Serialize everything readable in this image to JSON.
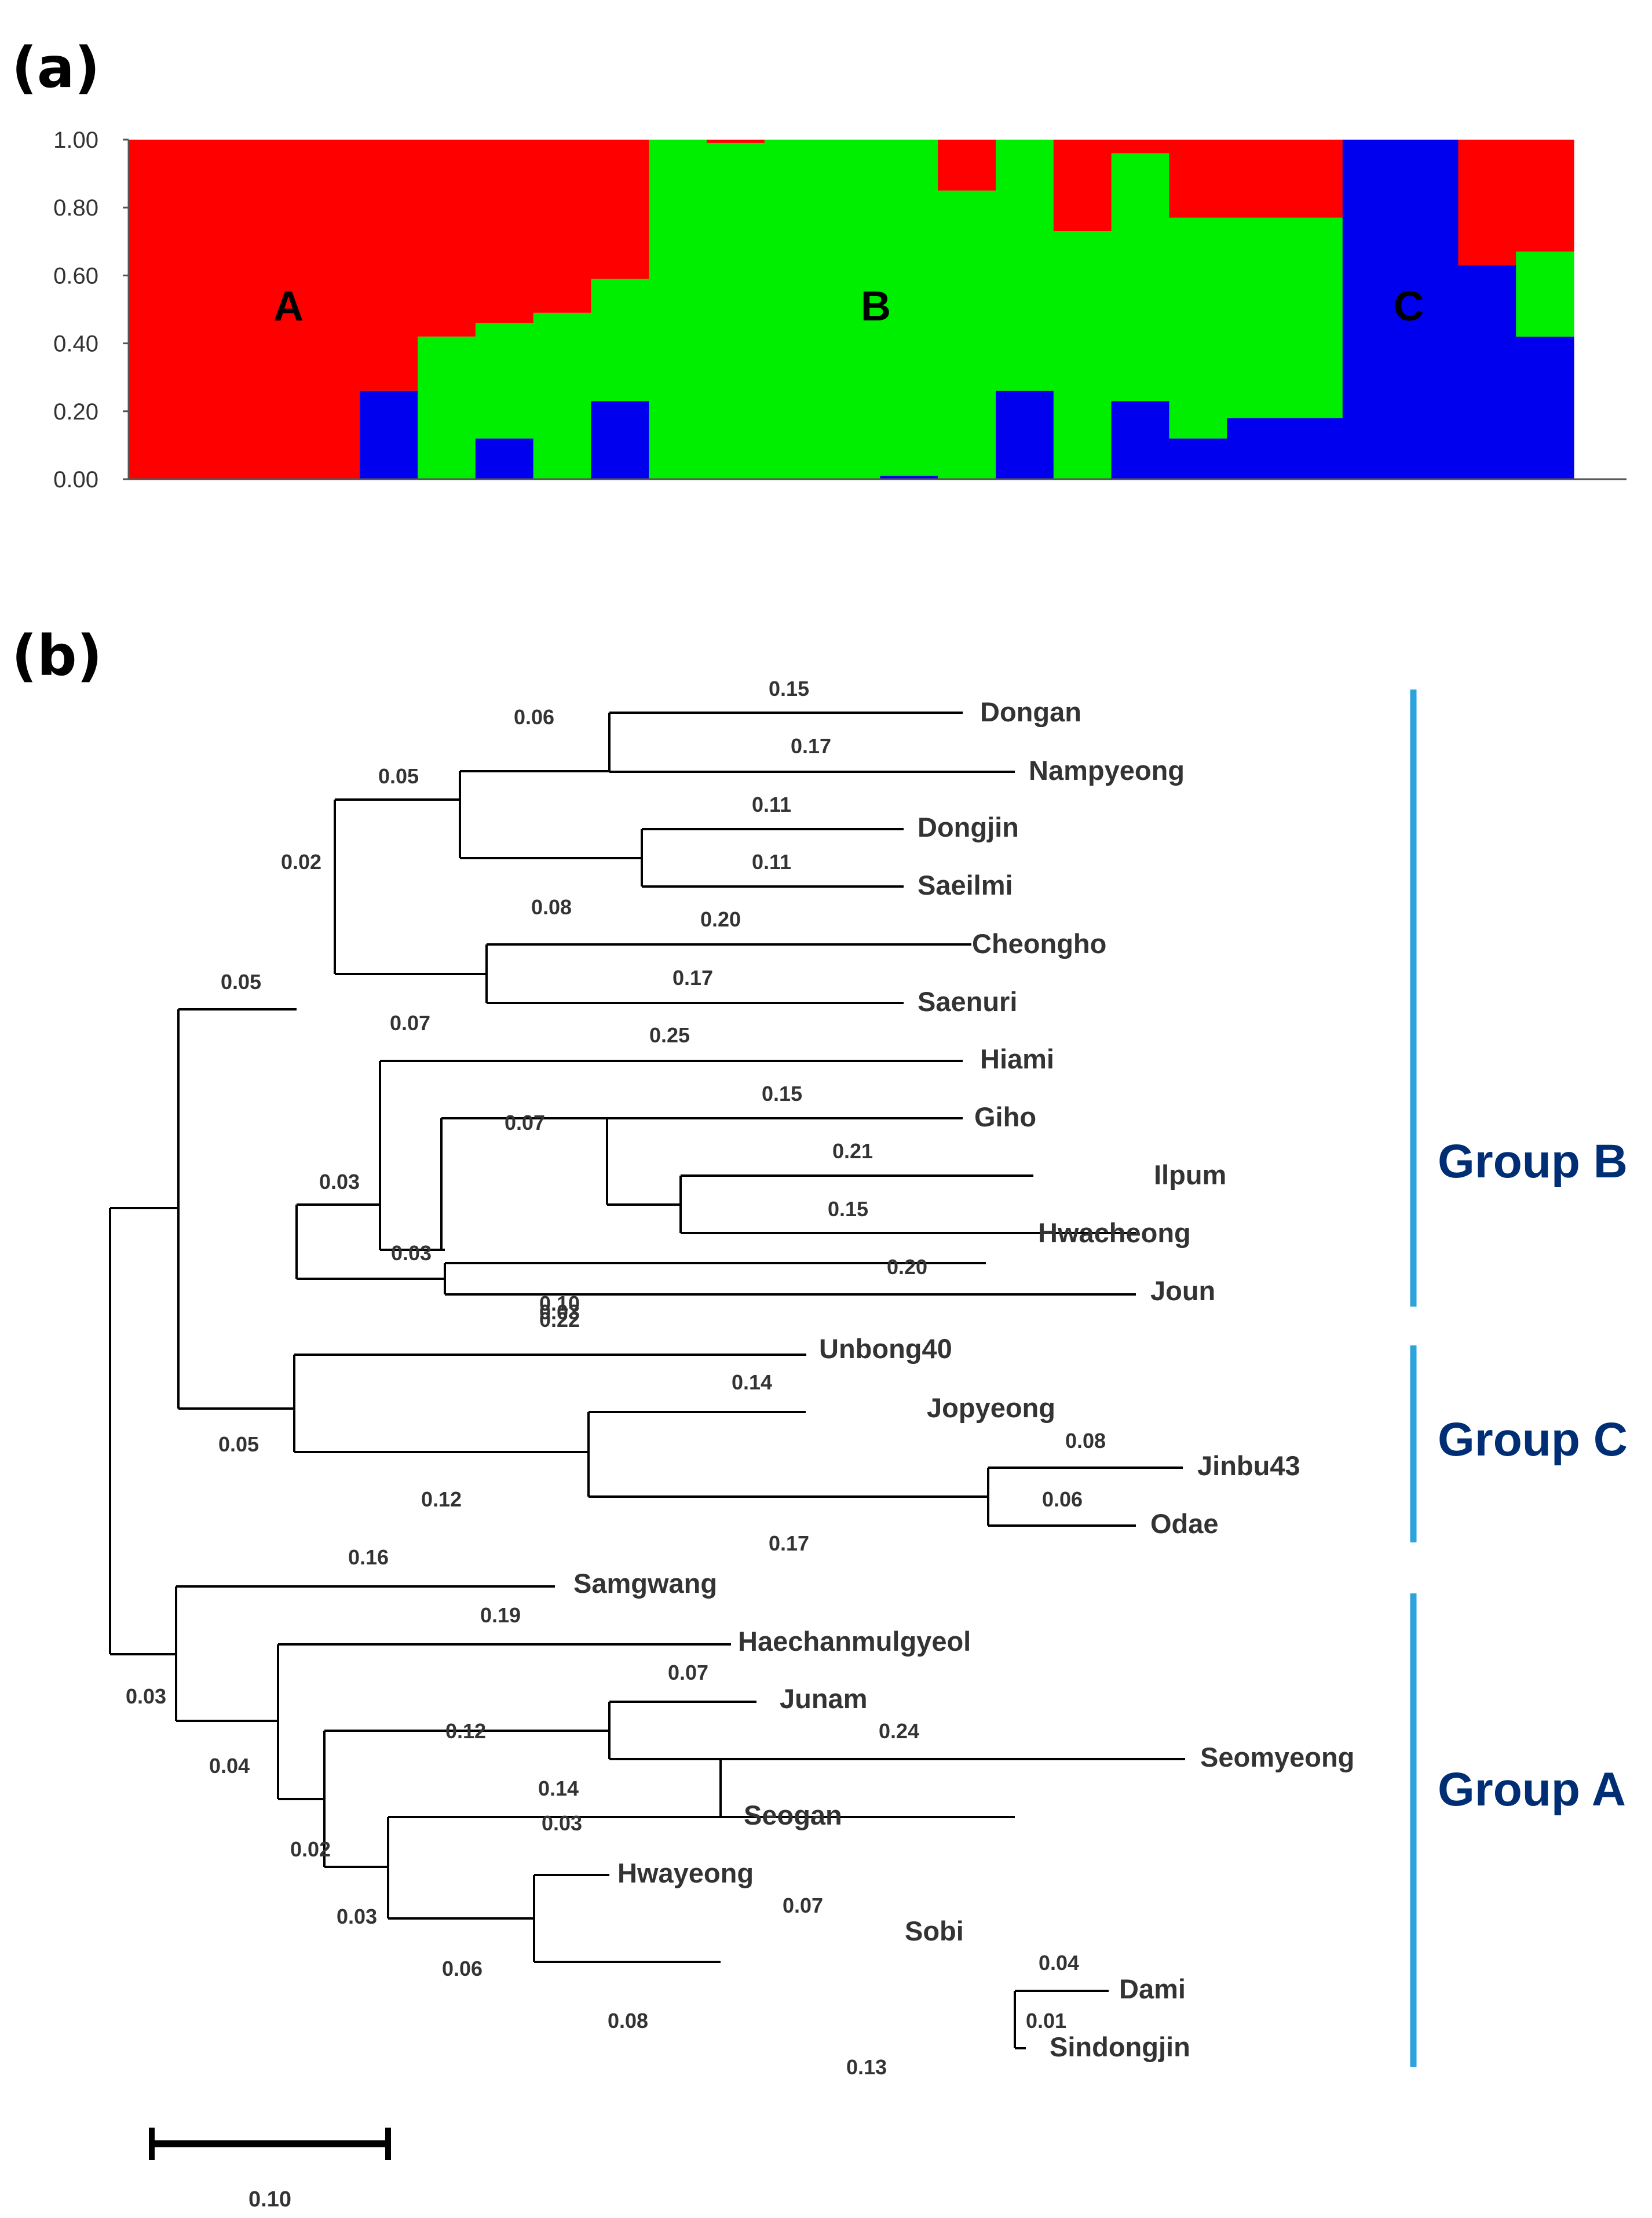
{
  "panel_a_label": "(a)",
  "panel_b_label": "(b)",
  "colors": {
    "red": "#ff0000",
    "green": "#00ee00",
    "blue": "#0000ee",
    "group_text": "#002e74",
    "bracket": "#2da3db"
  },
  "chart_data": [
    {
      "type": "bar",
      "subtype": "stacked-structure",
      "title": "",
      "ylim": [
        0,
        1
      ],
      "yticks": [
        "0.00",
        "0.20",
        "0.40",
        "0.60",
        "0.80",
        "1.00"
      ],
      "cluster_labels": [
        "A",
        "B",
        "C"
      ],
      "series": [
        {
          "name": "blue",
          "values": [
            0,
            0,
            0,
            0,
            0.26,
            0,
            0.12,
            0,
            0.23,
            0,
            0,
            0,
            0,
            0.01,
            0,
            0.26,
            0,
            0.23,
            0.12,
            0.18,
            0.18,
            1,
            1,
            0.63,
            0.42
          ]
        },
        {
          "name": "green",
          "values": [
            0,
            0,
            0,
            0,
            0,
            0.42,
            0.34,
            0.49,
            0.36,
            1,
            0.99,
            1,
            1,
            0.99,
            0.85,
            0.74,
            0.73,
            0.73,
            0.65,
            0.59,
            0.59,
            0,
            0,
            0,
            0.25
          ]
        },
        {
          "name": "red",
          "values": [
            1,
            1,
            1,
            1,
            0.74,
            0.58,
            0.54,
            0.51,
            0.41,
            0,
            0.01,
            0,
            0,
            0,
            0.15,
            0,
            0.27,
            0.04,
            0.23,
            0.23,
            0.23,
            0,
            0,
            0.37,
            0.33
          ]
        }
      ]
    },
    {
      "type": "dendrogram",
      "scale_bar": {
        "value": 0.1,
        "label": "0.10"
      },
      "leaves": [
        "Dongan",
        "Nampyeong",
        "Dongjin",
        "Saeilmi",
        "Cheongho",
        "Saenuri",
        "Hiami",
        "Giho",
        "Ilpum",
        "Hwacheong",
        "Joun",
        "Unbong40",
        "Jopyeong",
        "Jinbu43",
        "Odae",
        "Samgwang",
        "Haechanmulgyeol",
        "Junam",
        "Seomyeong",
        "Seogan",
        "Hwayeong",
        "Sobi",
        "Dami",
        "Sindongjin"
      ],
      "branch_lengths": [
        "0.15",
        "0.17",
        "0.06",
        "0.11",
        "0.11",
        "0.05",
        "0.08",
        "0.20",
        "0.02",
        "0.17",
        "0.05",
        "0.07",
        "0.25",
        "0.07",
        "0.15",
        "0.21",
        "0.03",
        "0.03",
        "0.15",
        "0.20",
        "0.03",
        "0.10",
        "0.22",
        "0.14",
        "0.05",
        "0.12",
        "0.08",
        "0.06",
        "0.17",
        "0.16",
        "0.19",
        "0.03",
        "0.04",
        "0.07",
        "0.12",
        "0.24",
        "0.14",
        "0.02",
        "0.03",
        "0.03",
        "0.06",
        "0.07",
        "0.04",
        "0.08",
        "0.01",
        "0.13"
      ],
      "groups": [
        {
          "name": "Group B",
          "members": [
            "Dongan",
            "Nampyeong",
            "Dongjin",
            "Saeilmi",
            "Cheongho",
            "Saenuri",
            "Hiami",
            "Giho",
            "Ilpum",
            "Hwacheong",
            "Joun"
          ]
        },
        {
          "name": "Group C",
          "members": [
            "Unbong40",
            "Jopyeong",
            "Jinbu43",
            "Odae"
          ]
        },
        {
          "name": "Group A",
          "members": [
            "Samgwang",
            "Haechanmulgyeol",
            "Junam",
            "Seomyeong",
            "Seogan",
            "Hwayeong",
            "Sobi",
            "Dami",
            "Sindongjin"
          ]
        }
      ]
    }
  ]
}
